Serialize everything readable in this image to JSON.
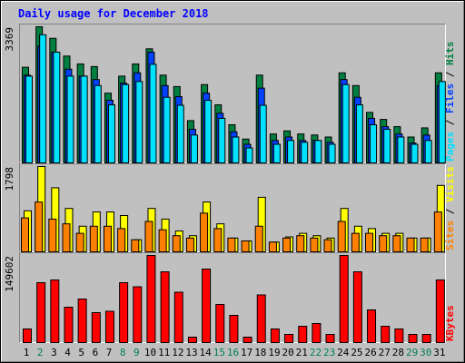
{
  "chart_data": {
    "type": "bar",
    "title": "Daily usage for December 2018",
    "colors": {
      "background": "#c0c0c0",
      "title": "#0000ff",
      "hits": "#008040",
      "files": "#0040ff",
      "pages": "#00e0ff",
      "visits": "#ffff00",
      "sites": "#ff8000",
      "kbytes": "#ff0000",
      "weekday_label": "#000000",
      "weekend_label": "#00804b"
    },
    "days": [
      {
        "label": "1",
        "weekend": false
      },
      {
        "label": "2",
        "weekend": true
      },
      {
        "label": "3",
        "weekend": false
      },
      {
        "label": "4",
        "weekend": false
      },
      {
        "label": "5",
        "weekend": false
      },
      {
        "label": "6",
        "weekend": false
      },
      {
        "label": "7",
        "weekend": false
      },
      {
        "label": "8",
        "weekend": true
      },
      {
        "label": "9",
        "weekend": true
      },
      {
        "label": "10",
        "weekend": false
      },
      {
        "label": "11",
        "weekend": false
      },
      {
        "label": "12",
        "weekend": false
      },
      {
        "label": "13",
        "weekend": false
      },
      {
        "label": "14",
        "weekend": false
      },
      {
        "label": "15",
        "weekend": true
      },
      {
        "label": "16",
        "weekend": true
      },
      {
        "label": "17",
        "weekend": false
      },
      {
        "label": "18",
        "weekend": false
      },
      {
        "label": "19",
        "weekend": false
      },
      {
        "label": "20",
        "weekend": false
      },
      {
        "label": "21",
        "weekend": false
      },
      {
        "label": "22",
        "weekend": true
      },
      {
        "label": "23",
        "weekend": true
      },
      {
        "label": "24",
        "weekend": false
      },
      {
        "label": "25",
        "weekend": false
      },
      {
        "label": "26",
        "weekend": false
      },
      {
        "label": "27",
        "weekend": false
      },
      {
        "label": "28",
        "weekend": false
      },
      {
        "label": "29",
        "weekend": true
      },
      {
        "label": "30",
        "weekend": true
      },
      {
        "label": "31",
        "weekend": false
      }
    ],
    "top_panel": {
      "ymax_label": "3369",
      "ymax": 3369,
      "legend": [
        {
          "name": "Pages",
          "color": "#00e0ff"
        },
        {
          "name": "Files",
          "color": "#0040ff"
        },
        {
          "name": "Hits",
          "color": "#008040"
        }
      ],
      "legend_separator": " / ",
      "series": [
        {
          "name": "Hits",
          "values": [
            2367,
            3369,
            3083,
            2644,
            2449,
            2384,
            1726,
            2147,
            2449,
            2823,
            2172,
            1889,
            1046,
            1938,
            1437,
            944,
            590,
            2172,
            716,
            792,
            716,
            690,
            640,
            2229,
            1914,
            1250,
            1076,
            897,
            640,
            866,
            2229
          ]
        },
        {
          "name": "Files",
          "values": [
            2172,
            2893,
            2741,
            2319,
            2147,
            2063,
            1550,
            1974,
            2229,
            2741,
            1914,
            1640,
            832,
            1726,
            1228,
            770,
            460,
            1850,
            555,
            640,
            555,
            555,
            510,
            2063,
            1623,
            1102,
            897,
            716,
            490,
            690,
            1914
          ]
        },
        {
          "name": "Pages",
          "values": [
            2147,
            3172,
            2741,
            2147,
            2147,
            1914,
            1437,
            1938,
            2014,
            2441,
            1623,
            1426,
            690,
            1548,
            1102,
            640,
            370,
            1426,
            460,
            555,
            510,
            555,
            460,
            1938,
            1437,
            944,
            832,
            640,
            460,
            555,
            2014
          ]
        }
      ]
    },
    "mid_panel": {
      "ymax_label": "1798",
      "ymax": 1798,
      "legend": [
        {
          "name": "Sites",
          "color": "#ff8000"
        },
        {
          "name": "Visits",
          "color": "#ffff00"
        }
      ],
      "legend_separator": " / ",
      "series": [
        {
          "name": "Visits",
          "values": [
            865,
            1798,
            1350,
            915,
            540,
            840,
            840,
            765,
            255,
            915,
            690,
            440,
            340,
            1050,
            590,
            290,
            230,
            1150,
            205,
            315,
            390,
            340,
            290,
            915,
            540,
            490,
            390,
            390,
            290,
            290,
            1400
          ]
        },
        {
          "name": "Sites",
          "values": [
            715,
            1050,
            690,
            590,
            390,
            540,
            540,
            490,
            255,
            640,
            465,
            340,
            290,
            815,
            490,
            290,
            230,
            540,
            205,
            290,
            340,
            290,
            255,
            640,
            390,
            390,
            340,
            340,
            290,
            290,
            840
          ]
        }
      ]
    },
    "bottom_panel": {
      "ymax_label": "149602",
      "ymax": 149602,
      "legend": [
        {
          "name": "KBytes",
          "color": "#ff0000"
        }
      ],
      "series": [
        {
          "name": "KBytes",
          "values": [
            23374,
            102847,
            107522,
            60774,
            74798,
            51424,
            53761,
            102847,
            95836,
            149602,
            121554,
            86484,
            9350,
            126228,
            65448,
            46749,
            9350,
            81810,
            23374,
            14024,
            28049,
            32723,
            14024,
            149602,
            121554,
            56098,
            28049,
            23374,
            14024,
            14024,
            107522
          ]
        }
      ]
    }
  }
}
